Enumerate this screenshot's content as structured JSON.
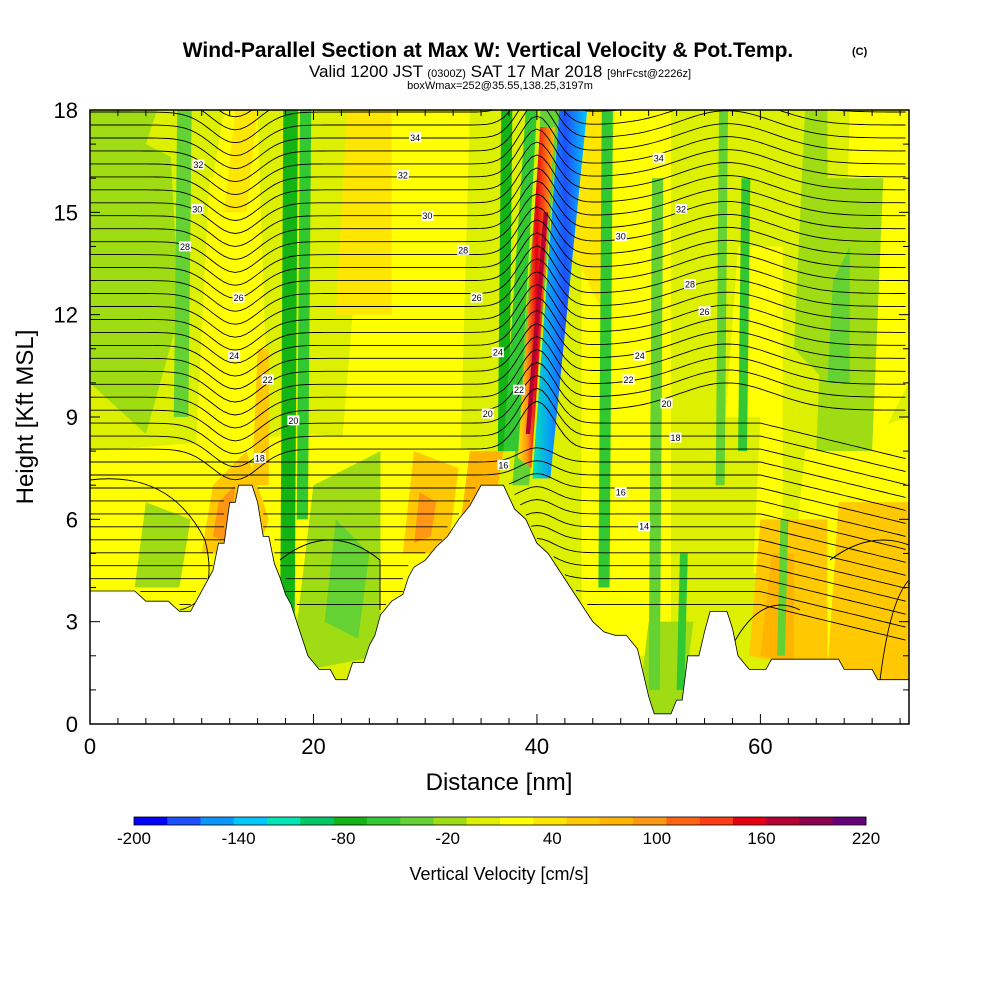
{
  "chart_data": {
    "type": "heatmap",
    "title": "Wind-Parallel Section at Max W: Vertical Velocity & Pot.Temp.",
    "title_mark": "(C)",
    "subtitle": {
      "part1": "Valid 1200 JST ",
      "part2": "(0300Z)",
      "part3": " SAT 17 Mar 2018 ",
      "part4": "[9hrFcst@2226z]"
    },
    "subtitle2": "boxWmax=252@35.55,138.25,3197m",
    "xlabel": "Distance [nm]",
    "ylabel": "Height [Kft MSL]",
    "xlim": [
      0,
      73.3
    ],
    "ylim": [
      0,
      18
    ],
    "x_ticks": [
      "0",
      "20",
      "40",
      "60"
    ],
    "y_ticks": [
      "0",
      "3",
      "6",
      "9",
      "12",
      "15",
      "18"
    ],
    "colorbar": {
      "title": "Vertical Velocity [cm/s]",
      "tick_labels": [
        "-200",
        "-140",
        "-80",
        "-20",
        "40",
        "100",
        "160",
        "220"
      ],
      "colors": [
        "#0000ff",
        "#1e50ff",
        "#0a96ff",
        "#00c8ff",
        "#00e6b4",
        "#00c864",
        "#14b414",
        "#32c832",
        "#64d232",
        "#a0dc14",
        "#dcf000",
        "#ffff00",
        "#ffe600",
        "#ffc800",
        "#ffb400",
        "#ff9614",
        "#ff6414",
        "#ff3c14",
        "#e60014",
        "#b40032",
        "#8c0050",
        "#640078"
      ]
    },
    "terrain_kft": [
      [
        0,
        3.9
      ],
      [
        1,
        3.9
      ],
      [
        4,
        3.9
      ],
      [
        5,
        3.6
      ],
      [
        7,
        3.6
      ],
      [
        8,
        3.3
      ],
      [
        9,
        3.3
      ],
      [
        10,
        3.9
      ],
      [
        11,
        4.5
      ],
      [
        11.5,
        5.3
      ],
      [
        12,
        5.3
      ],
      [
        12.5,
        6.5
      ],
      [
        13,
        6.5
      ],
      [
        13.3,
        7.0
      ],
      [
        14.5,
        7.0
      ],
      [
        15,
        6.5
      ],
      [
        15.5,
        5.5
      ],
      [
        16,
        5.5
      ],
      [
        16.5,
        4.7
      ],
      [
        17,
        4.3
      ],
      [
        17.5,
        3.8
      ],
      [
        18,
        3.5
      ],
      [
        18.5,
        3.0
      ],
      [
        19,
        2.5
      ],
      [
        19.5,
        2.0
      ],
      [
        20,
        1.8
      ],
      [
        20.5,
        1.6
      ],
      [
        21.5,
        1.6
      ],
      [
        22,
        1.3
      ],
      [
        23,
        1.3
      ],
      [
        23.5,
        1.8
      ],
      [
        24.5,
        1.8
      ],
      [
        25,
        2.3
      ],
      [
        25.5,
        2.6
      ],
      [
        26,
        3.2
      ],
      [
        27,
        3.6
      ],
      [
        28,
        3.8
      ],
      [
        28.5,
        4.3
      ],
      [
        29,
        4.6
      ],
      [
        30,
        4.8
      ],
      [
        31,
        5.2
      ],
      [
        32,
        5.5
      ],
      [
        33,
        6.0
      ],
      [
        34,
        6.4
      ],
      [
        35,
        7.0
      ],
      [
        37,
        7.0
      ],
      [
        38,
        6.3
      ],
      [
        39,
        6.0
      ],
      [
        40,
        5.3
      ],
      [
        41,
        5.0
      ],
      [
        42,
        4.5
      ],
      [
        43,
        4.0
      ],
      [
        44,
        3.5
      ],
      [
        45,
        3.0
      ],
      [
        46,
        2.7
      ],
      [
        47,
        2.6
      ],
      [
        48,
        2.6
      ],
      [
        49,
        2.2
      ],
      [
        49.5,
        1.5
      ],
      [
        50,
        0.8
      ],
      [
        50.5,
        0.3
      ],
      [
        52,
        0.3
      ],
      [
        52.5,
        0.7
      ],
      [
        53,
        0.7
      ],
      [
        53.5,
        2.0
      ],
      [
        54.5,
        2.0
      ],
      [
        55,
        2.7
      ],
      [
        55.5,
        3.3
      ],
      [
        57,
        3.3
      ],
      [
        57.5,
        2.8
      ],
      [
        58,
        2.0
      ],
      [
        58.5,
        1.8
      ],
      [
        59,
        1.6
      ],
      [
        60.5,
        1.6
      ],
      [
        61,
        1.9
      ],
      [
        62,
        1.9
      ],
      [
        64,
        1.9
      ],
      [
        67,
        1.9
      ],
      [
        67.5,
        1.6
      ],
      [
        70,
        1.6
      ],
      [
        70.5,
        1.3
      ],
      [
        73.3,
        1.3
      ]
    ],
    "theta_contour_labels": [
      {
        "label": "34",
        "x": 29.1,
        "y": 17.2
      },
      {
        "label": "32",
        "x": 9.7,
        "y": 16.4
      },
      {
        "label": "32",
        "x": 28.0,
        "y": 16.1
      },
      {
        "label": "30",
        "x": 9.6,
        "y": 15.1
      },
      {
        "label": "30",
        "x": 30.2,
        "y": 14.9
      },
      {
        "label": "28",
        "x": 8.5,
        "y": 14.0
      },
      {
        "label": "28",
        "x": 33.4,
        "y": 13.9
      },
      {
        "label": "26",
        "x": 13.3,
        "y": 12.5
      },
      {
        "label": "26",
        "x": 34.6,
        "y": 12.5
      },
      {
        "label": "24",
        "x": 12.9,
        "y": 10.8
      },
      {
        "label": "24",
        "x": 36.5,
        "y": 10.9
      },
      {
        "label": "22",
        "x": 15.9,
        "y": 10.1
      },
      {
        "label": "22",
        "x": 38.4,
        "y": 9.8
      },
      {
        "label": "20",
        "x": 18.2,
        "y": 8.9
      },
      {
        "label": "20",
        "x": 35.6,
        "y": 9.1
      },
      {
        "label": "18",
        "x": 15.2,
        "y": 7.8
      },
      {
        "label": "16",
        "x": 37.0,
        "y": 7.6
      },
      {
        "label": "34",
        "x": 50.9,
        "y": 16.6
      },
      {
        "label": "32",
        "x": 52.9,
        "y": 15.1
      },
      {
        "label": "30",
        "x": 47.5,
        "y": 14.3
      },
      {
        "label": "28",
        "x": 53.7,
        "y": 12.9
      },
      {
        "label": "26",
        "x": 55.0,
        "y": 12.1
      },
      {
        "label": "24",
        "x": 49.2,
        "y": 10.8
      },
      {
        "label": "22",
        "x": 48.2,
        "y": 10.1
      },
      {
        "label": "20",
        "x": 51.6,
        "y": 9.4
      },
      {
        "label": "18",
        "x": 52.4,
        "y": 8.4
      },
      {
        "label": "16",
        "x": 47.5,
        "y": 6.8
      },
      {
        "label": "14",
        "x": 49.6,
        "y": 5.8
      }
    ],
    "w_max_cm_s": 252,
    "w_max_location": "35.55,138.25,3197m"
  }
}
